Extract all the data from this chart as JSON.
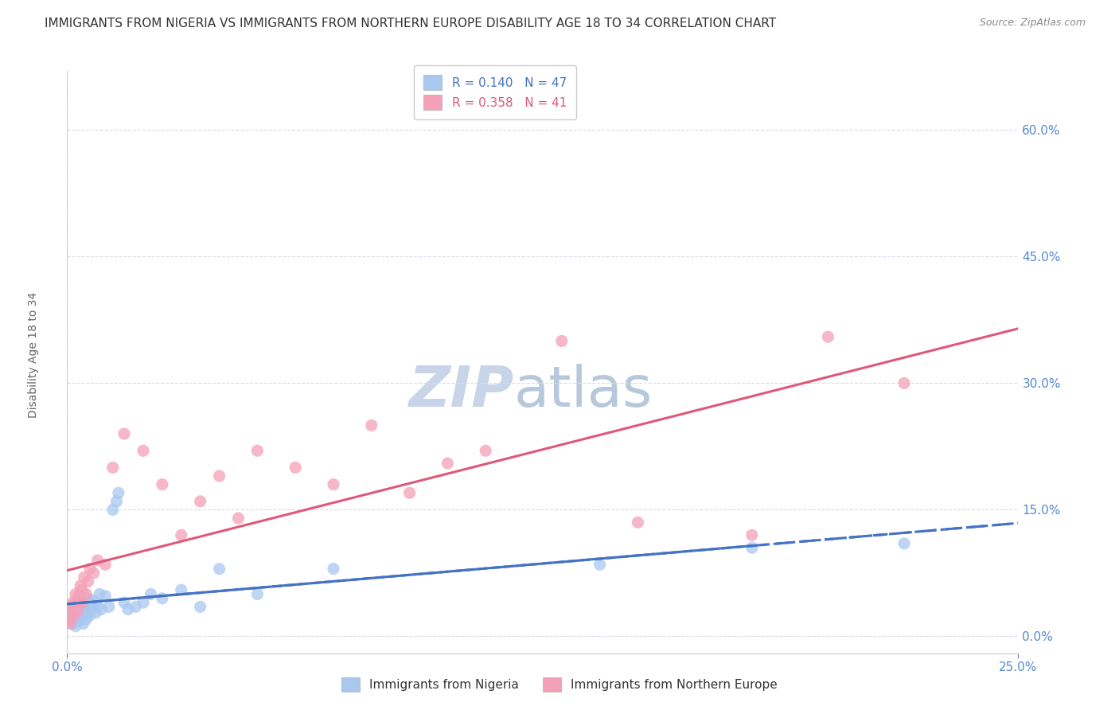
{
  "title": "IMMIGRANTS FROM NIGERIA VS IMMIGRANTS FROM NORTHERN EUROPE DISABILITY AGE 18 TO 34 CORRELATION CHART",
  "source": "Source: ZipAtlas.com",
  "ylabel": "Disability Age 18 to 34",
  "ytick_values": [
    0.0,
    15.0,
    30.0,
    45.0,
    60.0
  ],
  "xlim": [
    0.0,
    25.0
  ],
  "ylim": [
    -2.0,
    67.0
  ],
  "series": [
    {
      "label": "Immigrants from Nigeria",
      "R": 0.14,
      "N": 47,
      "color": "#a8c8f0",
      "trend_color": "#4472c4",
      "trend_style": "--",
      "points": [
        [
          0.05,
          2.5
        ],
        [
          0.08,
          1.8
        ],
        [
          0.1,
          3.0
        ],
        [
          0.12,
          2.2
        ],
        [
          0.15,
          1.5
        ],
        [
          0.18,
          2.8
        ],
        [
          0.2,
          3.2
        ],
        [
          0.22,
          1.2
        ],
        [
          0.25,
          2.0
        ],
        [
          0.28,
          3.5
        ],
        [
          0.3,
          1.8
        ],
        [
          0.32,
          2.5
        ],
        [
          0.35,
          4.0
        ],
        [
          0.38,
          2.2
        ],
        [
          0.4,
          3.8
        ],
        [
          0.42,
          1.5
        ],
        [
          0.45,
          2.8
        ],
        [
          0.48,
          3.2
        ],
        [
          0.5,
          2.0
        ],
        [
          0.55,
          4.5
        ],
        [
          0.58,
          3.0
        ],
        [
          0.6,
          2.5
        ],
        [
          0.65,
          3.8
        ],
        [
          0.7,
          4.2
        ],
        [
          0.75,
          2.8
        ],
        [
          0.8,
          3.5
        ],
        [
          0.85,
          5.0
        ],
        [
          0.9,
          3.2
        ],
        [
          1.0,
          4.8
        ],
        [
          1.1,
          3.5
        ],
        [
          1.2,
          15.0
        ],
        [
          1.3,
          16.0
        ],
        [
          1.35,
          17.0
        ],
        [
          1.5,
          4.0
        ],
        [
          1.6,
          3.2
        ],
        [
          1.8,
          3.5
        ],
        [
          2.0,
          4.0
        ],
        [
          2.2,
          5.0
        ],
        [
          2.5,
          4.5
        ],
        [
          3.0,
          5.5
        ],
        [
          3.5,
          3.5
        ],
        [
          4.0,
          8.0
        ],
        [
          5.0,
          5.0
        ],
        [
          7.0,
          8.0
        ],
        [
          14.0,
          8.5
        ],
        [
          18.0,
          10.5
        ],
        [
          22.0,
          11.0
        ]
      ]
    },
    {
      "label": "Immigrants from Northern Europe",
      "R": 0.358,
      "N": 41,
      "color": "#f4a0b8",
      "trend_color": "#e05878",
      "trend_style": "-",
      "points": [
        [
          0.05,
          2.0
        ],
        [
          0.08,
          1.5
        ],
        [
          0.1,
          3.5
        ],
        [
          0.12,
          2.8
        ],
        [
          0.15,
          4.0
        ],
        [
          0.18,
          2.5
        ],
        [
          0.2,
          3.8
        ],
        [
          0.22,
          5.0
        ],
        [
          0.25,
          4.2
        ],
        [
          0.28,
          3.0
        ],
        [
          0.3,
          4.8
        ],
        [
          0.35,
          6.0
        ],
        [
          0.38,
          5.5
        ],
        [
          0.4,
          4.0
        ],
        [
          0.45,
          7.0
        ],
        [
          0.5,
          5.0
        ],
        [
          0.55,
          6.5
        ],
        [
          0.6,
          8.0
        ],
        [
          0.7,
          7.5
        ],
        [
          0.8,
          9.0
        ],
        [
          1.0,
          8.5
        ],
        [
          1.2,
          20.0
        ],
        [
          1.5,
          24.0
        ],
        [
          2.0,
          22.0
        ],
        [
          2.5,
          18.0
        ],
        [
          3.0,
          12.0
        ],
        [
          3.5,
          16.0
        ],
        [
          4.0,
          19.0
        ],
        [
          4.5,
          14.0
        ],
        [
          5.0,
          22.0
        ],
        [
          6.0,
          20.0
        ],
        [
          7.0,
          18.0
        ],
        [
          8.0,
          25.0
        ],
        [
          9.0,
          17.0
        ],
        [
          10.0,
          20.5
        ],
        [
          11.0,
          22.0
        ],
        [
          13.0,
          35.0
        ],
        [
          15.0,
          13.5
        ],
        [
          18.0,
          12.0
        ],
        [
          20.0,
          35.5
        ],
        [
          22.0,
          30.0
        ]
      ]
    }
  ],
  "title_fontsize": 11,
  "source_fontsize": 9,
  "axis_label_fontsize": 10,
  "tick_fontsize": 11,
  "legend_fontsize": 11,
  "watermark_fontsize": 52,
  "watermark_color_zip": "#c8d4e8",
  "watermark_color_atlas": "#b8c8dc",
  "background_color": "#ffffff",
  "grid_color": "#d8dce8",
  "title_color": "#333333",
  "axis_color": "#5588cc",
  "ylabel_color": "#666666"
}
